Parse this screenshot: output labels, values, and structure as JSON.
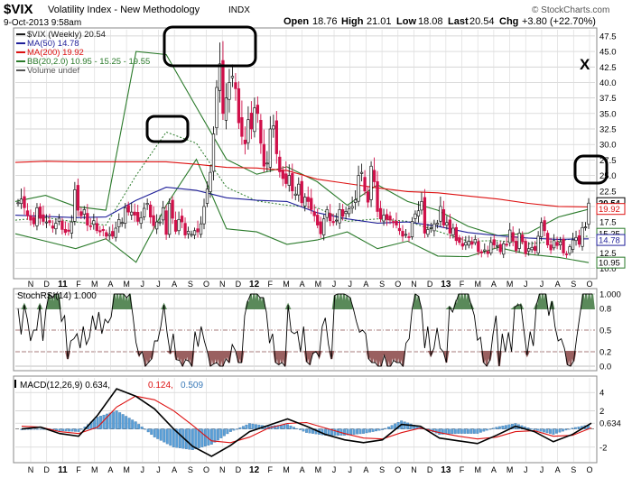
{
  "header": {
    "symbol": "$VIX",
    "name": "Volatility Index - New Methodology",
    "exchange": "INDX",
    "date": "9-Oct-2013 9:58am",
    "open_label": "Open",
    "open": "18.76",
    "high_label": "High",
    "high": "21.01",
    "low_label": "Low",
    "low": "18.08",
    "last_label": "Last",
    "last": "20.54",
    "chg_label": "Chg",
    "chg": "+3.80 (+22.70%)",
    "brand": "© StockCharts.com"
  },
  "colors": {
    "up": "#1a1a1a",
    "down": "#d0104a",
    "ma50": "#1f1f99",
    "ma200": "#dd1111",
    "bb": "#2a7a2a",
    "grid": "#c8c8c8",
    "stoch_fill_hi": "#5a8a5a",
    "stoch_fill_lo": "#9a6060",
    "macd": "#000000",
    "signal": "#dd1111",
    "hist": "#5aa0d8",
    "callout": "#000000"
  },
  "x_axis": [
    "N",
    "D",
    "11",
    "F",
    "M",
    "A",
    "M",
    "J",
    "J",
    "A",
    "S",
    "O",
    "N",
    "D",
    "12",
    "F",
    "M",
    "A",
    "M",
    "J",
    "J",
    "A",
    "S",
    "O",
    "N",
    "D",
    "13",
    "F",
    "M",
    "A",
    "M",
    "J",
    "J",
    "A",
    "S",
    "O"
  ],
  "annotation": {
    "x_mark": "X"
  },
  "chart_data": [
    {
      "type": "candlestick",
      "title": "$VIX (Weekly) 20.54",
      "legend": [
        {
          "label": "$VIX (Weekly) 20.54",
          "color": "#1a1a1a"
        },
        {
          "label": "MA(50) 14.78",
          "color": "#1f1f99"
        },
        {
          "label": "MA(200) 19.92",
          "color": "#dd1111"
        },
        {
          "label": "BB(20,2.0) 10.95 - 15.25 - 19.55",
          "color": "#2a7a2a"
        },
        {
          "label": "Volume undef",
          "color": "#555555"
        }
      ],
      "y_ticks": [
        47.5,
        45.0,
        42.5,
        40.0,
        37.5,
        35.0,
        32.5,
        30.0,
        27.5,
        25.0,
        22.5,
        20.0,
        17.5,
        15.0,
        12.5,
        10.0
      ],
      "y_tick_labels": [
        "47.5",
        "45.0",
        "42.5",
        "40.0",
        "37.5",
        "35.0",
        "32.5",
        "30.0",
        "27.5",
        "25.0",
        "22.5",
        "20.0",
        "17.5",
        "15.0",
        "12.5",
        "10.0"
      ],
      "ylim": [
        8.5,
        48.5
      ],
      "price_tags": [
        {
          "label": "20.54",
          "value": 20.54,
          "style": "last"
        },
        {
          "label": "19.92",
          "value": 19.6,
          "style": "ma200"
        },
        {
          "label": "15.25",
          "value": 15.6,
          "style": "bbmid"
        },
        {
          "label": "14.78",
          "value": 14.6,
          "style": "ma50"
        },
        {
          "label": "10.95",
          "value": 10.95,
          "style": "bblow"
        }
      ],
      "closes": [
        20.6,
        21.2,
        19.8,
        18.5,
        17.8,
        17.2,
        19.8,
        18.1,
        17.6,
        17.5,
        17.4,
        16.5,
        17.3,
        18.1,
        16.3,
        15.8,
        16.0,
        17.5,
        22.7,
        19.4,
        18.5,
        19.5,
        17.0,
        16.8,
        17.7,
        16.1,
        15.9,
        16.1,
        15.2,
        15.5,
        15.2,
        16.5,
        17.9,
        17.4,
        19.8,
        19.1,
        19.1,
        18.6,
        17.6,
        18.2,
        19.7,
        20.5,
        18.3,
        16.9,
        17.5,
        17.5,
        19.8,
        15.5,
        20.5,
        18.1,
        16.0,
        17.9,
        17.5,
        15.4,
        16.0,
        15.5,
        16.1,
        15.9,
        17.2,
        20.0,
        22.8,
        25.5,
        31.7,
        39.2,
        43.0,
        35.0,
        37.5,
        40.0,
        41.0,
        39.0,
        33.5,
        31.3,
        30.1,
        34.0,
        32.5,
        35.9,
        35.0,
        30.2,
        26.5,
        27.0,
        32.5,
        33.0,
        28.5,
        25.6,
        24.5,
        23.7,
        25.0,
        22.5,
        22.0,
        23.6,
        20.6,
        21.5,
        20.8,
        19.5,
        18.5,
        17.0,
        15.6,
        18.0,
        19.5,
        17.7,
        17.4,
        17.8,
        19.5,
        18.4,
        19.2,
        19.6,
        20.0,
        21.1,
        25.0,
        25.5,
        22.5,
        20.7,
        26.5,
        24.0,
        19.2,
        18.0,
        18.6,
        17.9,
        17.8,
        17.4,
        17.0,
        16.1,
        15.2,
        15.5,
        15.1,
        17.6,
        18.8,
        19.3,
        20.8,
        15.7,
        16.3,
        16.6,
        17.2,
        17.3,
        20.0,
        17.0,
        17.4,
        15.7,
        16.5,
        14.5,
        14.2,
        13.6,
        14.2,
        14.4,
        13.9,
        14.7,
        12.7,
        12.5,
        13.0,
        12.4,
        14.2,
        13.8,
        13.7,
        12.7,
        14.0,
        13.9,
        16.2,
        14.4,
        12.9,
        15.7,
        14.3,
        12.4,
        13.2,
        13.4,
        12.9,
        15.2,
        17.4,
        16.1,
        13.8,
        13.0,
        14.5,
        13.7,
        14.3,
        12.5,
        12.3,
        13.5,
        14.6,
        15.0,
        13.9,
        16.6,
        16.7,
        20.54
      ],
      "series": [
        {
          "name": "MA(50)",
          "values": [
            18.6,
            18.4,
            18.2,
            18.3,
            21.0,
            23.1,
            22.6,
            21.4,
            21.0,
            20.8,
            19.0,
            18.0,
            17.3,
            17.5,
            16.8,
            15.8,
            15.3,
            14.9,
            14.7,
            14.78
          ]
        },
        {
          "name": "MA(200)",
          "values": [
            27.1,
            27.3,
            27.2,
            27.2,
            27.2,
            27.2,
            26.8,
            26.3,
            26.2,
            25.8,
            24.4,
            23.7,
            23.0,
            22.4,
            22.2,
            21.7,
            21.2,
            20.5,
            20.0,
            19.92
          ]
        },
        {
          "name": "BB upper",
          "values": [
            20.8,
            21.8,
            20.0,
            19.4,
            45.0,
            44.5,
            36.0,
            27.6,
            25.2,
            26.4,
            24.0,
            20.2,
            23.5,
            20.8,
            19.4,
            16.8,
            15.3,
            15.7,
            18.3,
            19.55
          ]
        },
        {
          "name": "BB middle",
          "values": [
            17.8,
            18.2,
            17.5,
            17.0,
            25.0,
            32.0,
            30.2,
            23.1,
            20.9,
            20.2,
            19.8,
            17.6,
            18.0,
            17.6,
            16.0,
            14.4,
            14.5,
            14.0,
            14.4,
            15.25
          ]
        },
        {
          "name": "BB lower",
          "values": [
            15.6,
            14.4,
            13.2,
            14.8,
            11.0,
            20.2,
            27.6,
            16.4,
            15.9,
            13.9,
            14.6,
            15.9,
            13.2,
            14.4,
            12.0,
            11.9,
            13.4,
            12.3,
            11.8,
            10.95
          ]
        }
      ]
    },
    {
      "type": "line",
      "title": "StochRSI(14) 1.000",
      "y_ticks": [
        1.0,
        0.8,
        0.5,
        0.2,
        0.0
      ],
      "y_tick_labels": [
        "1.000",
        "0.8",
        "0.5",
        "0.2",
        "0.0"
      ],
      "ylim": [
        -0.05,
        1.05
      ],
      "series": [
        {
          "name": "StochRSI(14)",
          "values": [
            0.8,
            0.44,
            0.85,
            0.65,
            0.35,
            0.5,
            0.5,
            0.85,
            0.35,
            0.78,
            1.0,
            0.95,
            1.0,
            1.0,
            0.62,
            0.7,
            0.1,
            0.35,
            0.38,
            0.45,
            0.25,
            0.55,
            0.3,
            0.4,
            0.7,
            0.5,
            0.75,
            0.45,
            0.65,
            0.6,
            0.68,
            1.0,
            1.0,
            1.0,
            1.0,
            0.95,
            1.0,
            0.7,
            0.33,
            0.15,
            0.2,
            0.0,
            0.05,
            0.1,
            0.35,
            0.35,
            0.55,
            0.85,
            0.47,
            0.18,
            0.45,
            0.09,
            0.08,
            0.0,
            0.09,
            0.07,
            0.0,
            0.48,
            0.27,
            0.55,
            0.35,
            0.2,
            0.0,
            0.03,
            0.05,
            0.0,
            0.0,
            0.1,
            0.05,
            0.3,
            0.22,
            0.05,
            0.05,
            0.7,
            0.9,
            1.0,
            1.0,
            1.0,
            0.95,
            0.95,
            0.75,
            0.32,
            0.45,
            0.05,
            0.02,
            0.05,
            0.0,
            0.85,
            0.48,
            0.45,
            0.48,
            0.2,
            0.55,
            0.06,
            0.02,
            0.18,
            0.2,
            0.13,
            0.55,
            0.67,
            0.3,
            0.1,
            0.98,
            1.0,
            1.0,
            1.0,
            0.98,
            0.95,
            0.8,
            0.62,
            0.47,
            0.5,
            0.45,
            0.1,
            0.05,
            0.05,
            0.0,
            0.0,
            0.15,
            0.0,
            0.0,
            0.08,
            0.05,
            0.05,
            0.0,
            0.32,
            0.38,
            0.8,
            1.0,
            0.97,
            0.8,
            0.25,
            0.55,
            0.15,
            0.25,
            0.53,
            0.25,
            0.2,
            0.05,
            0.82,
            0.75,
            0.88,
            1.0,
            1.0,
            1.0,
            1.0,
            0.85,
            0.7,
            0.36,
            0.4,
            0.05,
            0.0,
            0.08,
            0.44,
            0.7,
            0.0,
            0.45,
            0.2,
            0.47,
            0.2,
            0.82,
            0.85,
            0.85,
            0.48,
            0.15,
            0.48,
            0.28,
            0.85,
            1.0,
            1.0,
            1.0,
            0.7,
            0.9,
            0.55,
            0.35,
            0.38,
            0.25,
            0.02,
            0.0,
            0.07,
            0.4,
            0.7,
            1.0,
            1.0,
            1.0,
            1.0
          ]
        }
      ]
    },
    {
      "type": "line",
      "title": "MACD(12,26,9) 0.634, 0.124, 0.509",
      "legend": [
        {
          "label": "MACD(12,26,9) 0.634,",
          "color": "#000000"
        },
        {
          "label": "0.124,",
          "color": "#dd1111"
        },
        {
          "label": "0.509",
          "color": "#3a7ab8"
        }
      ],
      "y_ticks": [
        4,
        2,
        0.634,
        -2
      ],
      "y_tick_labels": [
        "4",
        "2",
        "0.634",
        "-2"
      ],
      "ylim": [
        -3.6,
        5.6
      ],
      "series": [
        {
          "name": "MACD",
          "values": [
            0.0,
            0.2,
            -0.5,
            -0.8,
            1.5,
            4.4,
            3.6,
            2.2,
            0.0,
            -1.9,
            -3.0,
            -1.8,
            -0.3,
            0.4,
            1.1,
            0.3,
            -0.6,
            -1.2,
            -1.5,
            -1.2,
            0.5,
            0.3,
            -1.0,
            -1.3,
            -1.6,
            -0.7,
            0.3,
            -0.3,
            -1.4,
            -0.6,
            0.634
          ]
        },
        {
          "name": "Signal",
          "values": [
            0.3,
            0.2,
            -0.3,
            -0.5,
            0.2,
            2.4,
            3.6,
            3.2,
            2.0,
            0.4,
            -1.3,
            -1.5,
            -0.9,
            0.1,
            0.6,
            0.7,
            0.1,
            -0.5,
            -1.0,
            -1.1,
            -0.4,
            0.1,
            -0.4,
            -0.8,
            -1.1,
            -0.9,
            -0.3,
            -0.2,
            -0.8,
            -0.7,
            0.124
          ]
        },
        {
          "name": "Histogram",
          "values": [
            -0.1,
            0.0,
            -0.2,
            -0.3,
            1.3,
            2.0,
            0.8,
            -0.9,
            -2.0,
            -2.3,
            -1.7,
            -0.3,
            0.6,
            0.3,
            0.5,
            -0.4,
            -0.7,
            -0.7,
            -0.5,
            -0.1,
            0.9,
            0.2,
            -0.6,
            -0.5,
            -0.5,
            0.2,
            0.6,
            -0.1,
            -0.6,
            0.1,
            0.509
          ]
        }
      ]
    }
  ]
}
